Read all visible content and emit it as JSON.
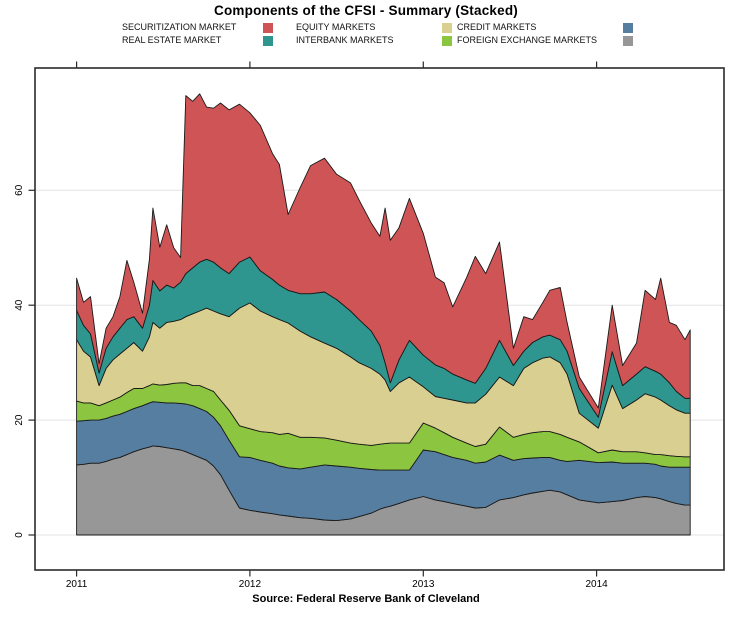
{
  "title": "Components of the CFSI - Summary (Stacked)",
  "source": "Source: Federal Reserve Bank of Cleveland",
  "legend": {
    "items": [
      {
        "label": "SECURITIZATION MARKET",
        "color": "#CF5456"
      },
      {
        "label": "REAL ESTATE MARKET",
        "color": "#2E968E"
      },
      {
        "label": "EQUITY MARKETS",
        "color": "#D9CF90"
      },
      {
        "label": "INTERBANK MARKETS",
        "color": "#8CC53F"
      },
      {
        "label": "CREDIT MARKETS",
        "color": "#567EA1"
      },
      {
        "label": "FOREIGN EXCHANGE MARKETS",
        "color": "#979797"
      }
    ]
  },
  "axis": {
    "xtick_labels": [
      "2011",
      "2012",
      "2013",
      "2014"
    ],
    "ytick_labels": [
      "0",
      "20",
      "40",
      "60"
    ]
  },
  "chart_data": {
    "type": "area",
    "stacked": true,
    "title": "Components of the CFSI - Summary (Stacked)",
    "xlabel": "",
    "ylabel": "",
    "grid": "horizontal-light",
    "legend_position": "top",
    "xticks": [
      2011,
      2012,
      2013,
      2014
    ],
    "yticks": [
      0,
      20,
      40,
      60
    ],
    "xlim": [
      2010.76,
      2014.735
    ],
    "ylim": [
      -6.1,
      81.3
    ],
    "x": [
      2011.0,
      2011.04,
      2011.08,
      2011.13,
      2011.17,
      2011.21,
      2011.25,
      2011.29,
      2011.33,
      2011.38,
      2011.42,
      2011.44,
      2011.48,
      2011.52,
      2011.56,
      2011.6,
      2011.63,
      2011.67,
      2011.71,
      2011.75,
      2011.79,
      2011.83,
      2011.88,
      2011.94,
      2012.0,
      2012.06,
      2012.13,
      2012.17,
      2012.22,
      2012.29,
      2012.35,
      2012.43,
      2012.5,
      2012.58,
      2012.63,
      2012.7,
      2012.75,
      2012.78,
      2012.81,
      2012.86,
      2012.92,
      2013.0,
      2013.07,
      2013.12,
      2013.17,
      2013.25,
      2013.3,
      2013.36,
      2013.44,
      2013.52,
      2013.58,
      2013.63,
      2013.69,
      2013.73,
      2013.79,
      2013.83,
      2013.9,
      2014.01,
      2014.09,
      2014.15,
      2014.23,
      2014.28,
      2014.34,
      2014.37,
      2014.42,
      2014.46,
      2014.51,
      2014.54
    ],
    "series": [
      {
        "id": "foreign-exchange-markets",
        "name": "FOREIGN EXCHANGE MARKETS",
        "color": "#979797",
        "values": [
          12.2,
          12.3,
          12.5,
          12.5,
          12.8,
          13.2,
          13.5,
          14.0,
          14.5,
          15.0,
          15.3,
          15.5,
          15.4,
          15.2,
          15.0,
          14.8,
          14.5,
          14.0,
          13.5,
          13.0,
          12.0,
          10.5,
          7.8,
          4.7,
          4.3,
          4.0,
          3.7,
          3.5,
          3.3,
          3.0,
          2.9,
          2.6,
          2.5,
          2.8,
          3.2,
          3.8,
          4.5,
          4.8,
          5.0,
          5.5,
          6.1,
          6.7,
          6.1,
          5.8,
          5.5,
          5.0,
          4.7,
          4.8,
          6.1,
          6.5,
          7.0,
          7.3,
          7.6,
          7.8,
          7.5,
          7.0,
          6.1,
          5.6,
          5.8,
          6.0,
          6.5,
          6.7,
          6.5,
          6.3,
          5.8,
          5.5,
          5.2,
          5.2
        ]
      },
      {
        "id": "credit-markets",
        "name": "CREDIT MARKETS",
        "color": "#567EA1",
        "values": [
          7.6,
          7.6,
          7.5,
          7.5,
          7.5,
          7.5,
          7.5,
          7.5,
          7.5,
          7.5,
          7.7,
          7.7,
          7.7,
          7.8,
          8.0,
          8.1,
          8.3,
          8.5,
          8.5,
          8.5,
          8.5,
          8.5,
          8.7,
          8.9,
          9.2,
          9.0,
          8.8,
          8.5,
          8.4,
          8.5,
          8.9,
          9.6,
          9.5,
          9.0,
          8.4,
          7.6,
          6.8,
          6.5,
          6.3,
          5.8,
          5.2,
          8.1,
          8.4,
          8.2,
          8.0,
          8.0,
          7.8,
          7.9,
          7.8,
          6.5,
          6.3,
          6.1,
          5.9,
          5.7,
          5.5,
          5.8,
          6.9,
          7.0,
          6.9,
          6.5,
          6.0,
          5.8,
          5.8,
          5.7,
          6.0,
          6.3,
          6.6,
          6.6
        ]
      },
      {
        "id": "interbank-markets",
        "name": "INTERBANK MARKETS",
        "color": "#8CC53F",
        "values": [
          3.5,
          3.1,
          3.0,
          2.5,
          2.7,
          2.8,
          3.0,
          3.3,
          3.5,
          3.0,
          3.0,
          3.1,
          3.0,
          3.2,
          3.4,
          3.6,
          3.7,
          3.5,
          4.0,
          4.0,
          4.5,
          4.5,
          5.2,
          5.4,
          5.0,
          5.0,
          5.3,
          5.5,
          6.0,
          5.5,
          5.2,
          4.7,
          4.5,
          4.2,
          4.2,
          4.2,
          4.5,
          4.6,
          4.7,
          4.7,
          4.7,
          4.7,
          4.1,
          3.8,
          3.5,
          3.0,
          2.9,
          3.1,
          4.9,
          4.0,
          4.2,
          4.4,
          4.5,
          4.5,
          4.5,
          4.2,
          3.2,
          1.7,
          2.1,
          2.0,
          2.0,
          1.8,
          1.7,
          2.0,
          2.0,
          1.9,
          1.8,
          1.8
        ]
      },
      {
        "id": "equity-markets",
        "name": "EQUITY MARKETS",
        "color": "#D9CF90",
        "values": [
          10.7,
          9.0,
          8.0,
          3.5,
          6.0,
          7.0,
          7.5,
          7.7,
          8.0,
          6.5,
          8.5,
          10.7,
          9.9,
          10.8,
          10.8,
          11.0,
          11.5,
          12.5,
          13.0,
          14.0,
          14.0,
          15.0,
          16.3,
          20.5,
          21.9,
          21.0,
          20.2,
          20.0,
          19.2,
          18.5,
          17.5,
          16.5,
          16.0,
          15.0,
          14.2,
          13.4,
          12.2,
          11.1,
          9.0,
          10.5,
          11.5,
          6.3,
          5.5,
          6.0,
          6.5,
          7.0,
          7.6,
          8.7,
          8.7,
          9.0,
          11.5,
          12.2,
          12.8,
          13.0,
          12.5,
          11.0,
          5.0,
          4.3,
          11.3,
          7.5,
          9.0,
          10.3,
          10.0,
          9.5,
          8.7,
          8.1,
          7.6,
          7.6
        ]
      },
      {
        "id": "real-estate-market",
        "name": "REAL ESTATE MARKET",
        "color": "#2E968E",
        "values": [
          5.1,
          4.5,
          4.0,
          2.2,
          3.5,
          4.0,
          4.5,
          5.0,
          4.5,
          4.0,
          5.5,
          7.3,
          6.5,
          6.5,
          5.8,
          6.5,
          7.5,
          8.0,
          8.5,
          8.5,
          8.5,
          8.0,
          7.5,
          8.0,
          8.0,
          7.0,
          6.5,
          6.0,
          5.7,
          6.5,
          7.5,
          8.9,
          8.5,
          8.0,
          7.5,
          6.5,
          5.0,
          3.0,
          1.5,
          4.0,
          6.4,
          5.5,
          5.5,
          5.2,
          4.5,
          4.0,
          3.4,
          4.5,
          6.4,
          3.5,
          3.0,
          3.5,
          3.7,
          3.8,
          4.0,
          4.0,
          4.3,
          1.9,
          5.8,
          4.0,
          4.5,
          4.7,
          4.5,
          4.5,
          4.0,
          3.2,
          2.6,
          2.6
        ]
      },
      {
        "id": "securitization-market",
        "name": "SECURITIZATION MARKET",
        "color": "#CF5456",
        "values": [
          5.6,
          4.0,
          6.5,
          1.6,
          3.5,
          3.5,
          5.5,
          10.3,
          6.0,
          2.6,
          8.0,
          12.6,
          7.6,
          10.5,
          7.0,
          4.3,
          31.0,
          29.0,
          29.3,
          26.5,
          26.8,
          28.7,
          28.5,
          27.5,
          25.1,
          25.3,
          21.9,
          21.0,
          13.2,
          18.5,
          22.3,
          23.3,
          21.8,
          22.3,
          20.8,
          18.8,
          19.0,
          26.9,
          24.8,
          23.0,
          24.7,
          21.2,
          15.3,
          14.9,
          11.7,
          17.8,
          22.1,
          16.5,
          17.1,
          3.0,
          6.0,
          4.0,
          6.0,
          7.8,
          9.1,
          5.0,
          2.0,
          1.6,
          8.1,
          3.5,
          5.4,
          13.3,
          12.5,
          16.7,
          10.5,
          11.5,
          10.2,
          11.9
        ]
      }
    ]
  }
}
